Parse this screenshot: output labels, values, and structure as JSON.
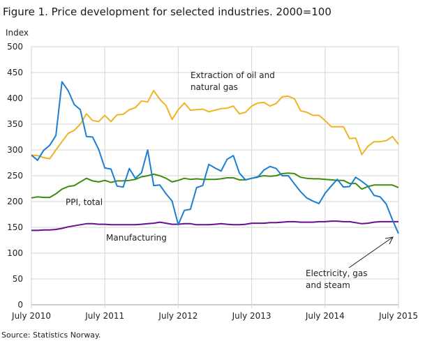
{
  "chart_data": {
    "type": "line",
    "title": "Figure 1. Price development for selected industries. 2000=100",
    "ylabel": "Index",
    "xlabel": "",
    "source": "Source: Statistics Norway.",
    "ylim": [
      0,
      500
    ],
    "yticks": [
      0,
      50,
      100,
      150,
      200,
      250,
      300,
      350,
      400,
      450,
      500
    ],
    "xticks": [
      "July 2010",
      "July 2011",
      "July 2012",
      "July 2013",
      "July 2014",
      "July 2015"
    ],
    "x_start": "July 2010",
    "x_end": "July 2015",
    "frequency": "monthly",
    "grid": true,
    "series": [
      {
        "name": "Extraction of oil and natural gas",
        "color": "#f0b323",
        "values": [
          290,
          289,
          285,
          283,
          300,
          316,
          332,
          338,
          350,
          370,
          357,
          355,
          367,
          355,
          368,
          369,
          378,
          382,
          395,
          393,
          415,
          398,
          386,
          359,
          378,
          391,
          377,
          378,
          379,
          374,
          377,
          380,
          381,
          385,
          370,
          373,
          385,
          391,
          392,
          385,
          390,
          403,
          404,
          399,
          376,
          373,
          367,
          367,
          357,
          345,
          345,
          345,
          322,
          323,
          291,
          307,
          316,
          316,
          318,
          326,
          311
        ]
      },
      {
        "name": "Electricity, gas and steam",
        "color": "#1a7fd4",
        "values": [
          290,
          280,
          299,
          309,
          328,
          432,
          415,
          388,
          378,
          326,
          325,
          301,
          265,
          263,
          230,
          228,
          264,
          245,
          256,
          300,
          231,
          232,
          215,
          201,
          155,
          183,
          185,
          227,
          231,
          272,
          265,
          259,
          282,
          289,
          255,
          242,
          245,
          247,
          261,
          268,
          264,
          250,
          250,
          234,
          219,
          207,
          201,
          196,
          216,
          230,
          243,
          228,
          229,
          247,
          239,
          230,
          212,
          209,
          195,
          165,
          138
        ]
      },
      {
        "name": "PPI, total",
        "color": "#3f8a10",
        "values": [
          207,
          209,
          208,
          208,
          215,
          224,
          229,
          231,
          238,
          245,
          240,
          238,
          241,
          237,
          240,
          240,
          241,
          243,
          248,
          250,
          253,
          250,
          245,
          238,
          241,
          245,
          243,
          244,
          243,
          243,
          243,
          244,
          246,
          246,
          242,
          242,
          245,
          248,
          250,
          249,
          250,
          254,
          255,
          254,
          247,
          245,
          244,
          244,
          243,
          242,
          241,
          241,
          235,
          235,
          224,
          229,
          232,
          232,
          232,
          232,
          227
        ]
      },
      {
        "name": "Manufacturing",
        "color": "#6a0d91",
        "values": [
          144,
          144,
          145,
          145,
          146,
          148,
          151,
          153,
          155,
          157,
          157,
          156,
          156,
          155,
          155,
          155,
          155,
          155,
          156,
          157,
          158,
          160,
          158,
          156,
          156,
          157,
          157,
          155,
          155,
          155,
          156,
          157,
          156,
          155,
          155,
          156,
          158,
          158,
          158,
          159,
          159,
          160,
          161,
          161,
          160,
          160,
          160,
          161,
          161,
          162,
          162,
          161,
          161,
          159,
          157,
          158,
          160,
          161,
          161,
          161,
          161
        ]
      }
    ]
  }
}
